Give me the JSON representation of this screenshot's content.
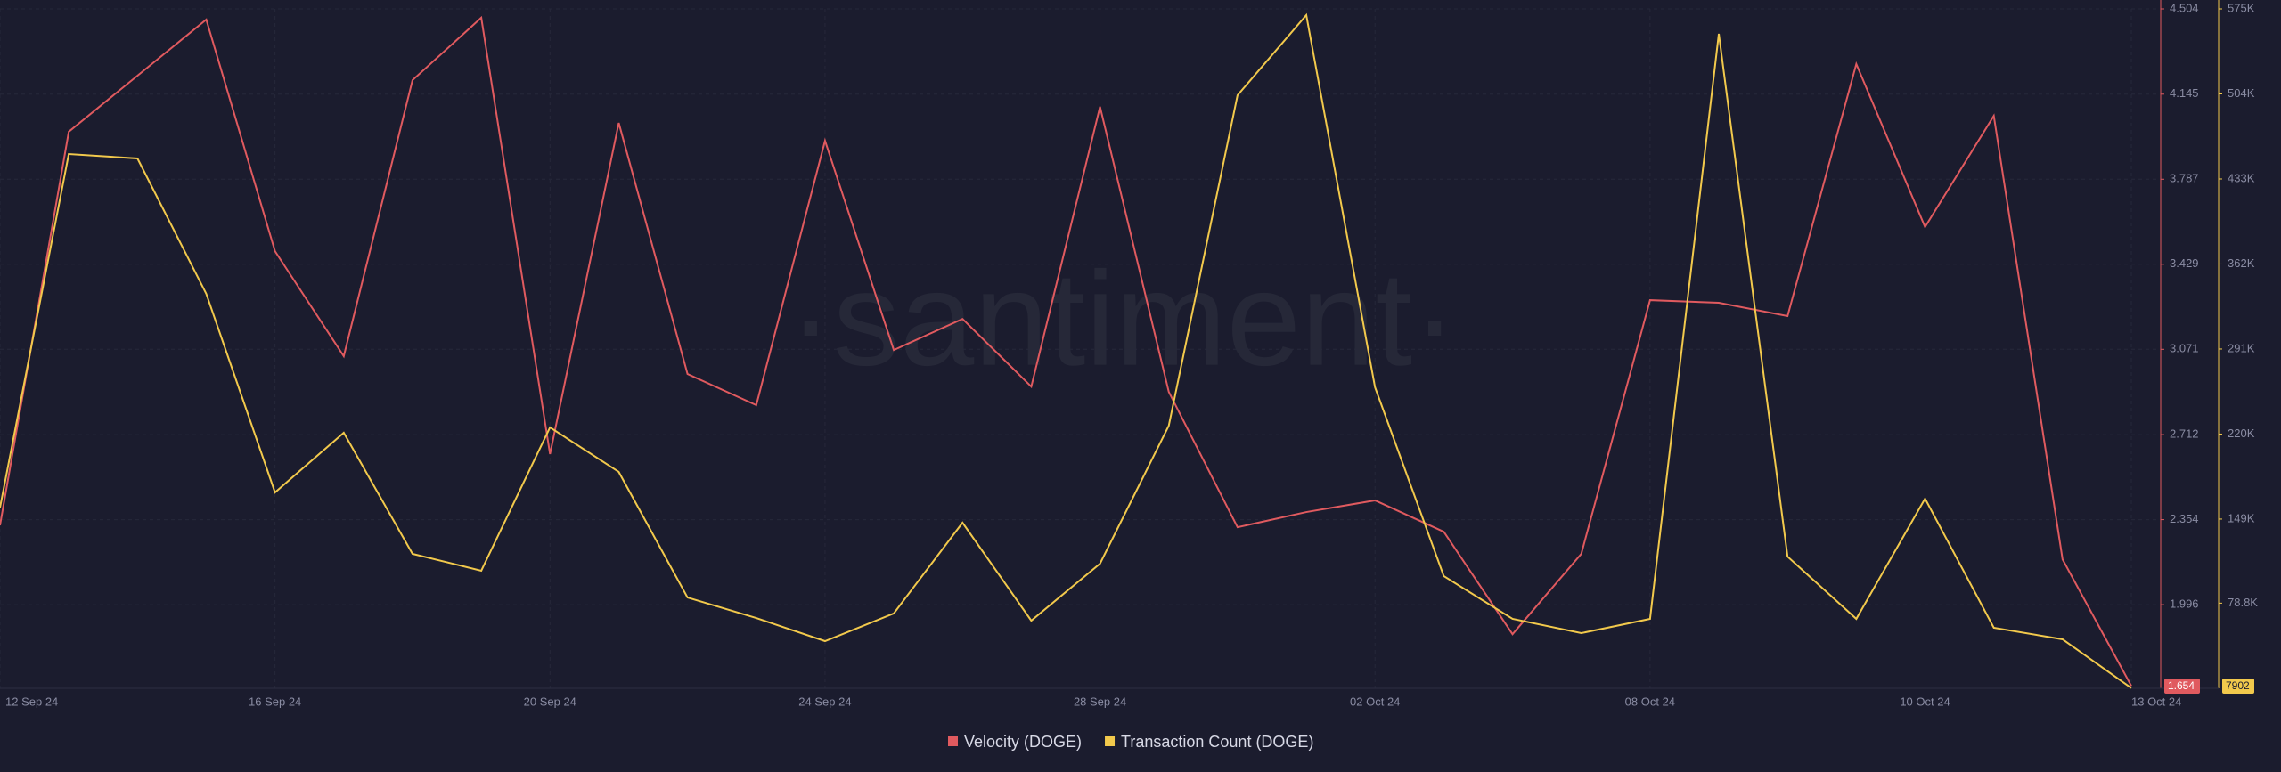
{
  "chart_data": {
    "type": "line",
    "watermark": "·santiment·",
    "categories": [
      "12 Sep 24",
      null,
      null,
      null,
      "16 Sep 24",
      null,
      null,
      null,
      "20 Sep 24",
      null,
      null,
      null,
      "24 Sep 24",
      null,
      null,
      null,
      "28 Sep 24",
      null,
      null,
      null,
      "02 Oct 24",
      null,
      null,
      null,
      "08 Oct 24",
      null,
      null,
      null,
      "10 Oct 24",
      null,
      null,
      "13 Oct 24"
    ],
    "series": [
      {
        "name": "Velocity (DOGE)",
        "color": "#e05a5f",
        "axis": "y",
        "values": [
          2.33,
          3.987,
          4.223,
          4.459,
          3.484,
          3.042,
          4.204,
          4.467,
          2.63,
          4.024,
          2.967,
          2.836,
          3.949,
          3.068,
          3.199,
          2.914,
          4.092,
          2.892,
          2.322,
          2.386,
          2.435,
          2.303,
          1.872,
          2.21,
          3.278,
          3.267,
          3.211,
          4.272,
          3.586,
          4.054,
          2.187,
          1.654
        ]
      },
      {
        "name": "Transaction Count (DOGE)",
        "color": "#f2c94c",
        "axis": "y2",
        "values": [
          158600,
          453800,
          450100,
          337100,
          171300,
          221100,
          120000,
          105900,
          225600,
          188400,
          83500,
          66400,
          47100,
          70200,
          146000,
          64200,
          111800,
          227000,
          502900,
          569800,
          259000,
          101400,
          65700,
          53800,
          65700,
          554200,
          117700,
          65700,
          166100,
          58300,
          48600,
          7902
        ]
      }
    ],
    "ylim": [
      1.644,
      4.504
    ],
    "yticks": [
      1.996,
      2.354,
      2.712,
      3.071,
      3.429,
      3.787,
      4.145,
      4.504
    ],
    "y2lim": [
      7700,
      575000
    ],
    "y2ticks": [
      {
        "value": 78800,
        "label": "78.8K"
      },
      {
        "value": 149000,
        "label": "149K"
      },
      {
        "value": 220000,
        "label": "220K"
      },
      {
        "value": 291000,
        "label": "291K"
      },
      {
        "value": 362000,
        "label": "362K"
      },
      {
        "value": 433000,
        "label": "433K"
      },
      {
        "value": 504000,
        "label": "504K"
      },
      {
        "value": 575000,
        "label": "575K"
      }
    ],
    "grid": true
  }
}
